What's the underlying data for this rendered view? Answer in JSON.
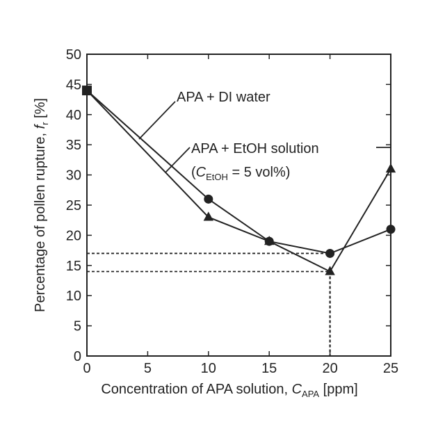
{
  "chart_data": {
    "type": "line",
    "title": "",
    "xlabel": {
      "main": "Concentration of APA solution, ",
      "symbol": "C",
      "subscript": "APA",
      "unit": " [ppm]"
    },
    "ylabel": {
      "main": "Percentage of pollen rupture, ",
      "symbol": "f",
      "subscript": "r",
      "unit": " [%]"
    },
    "xlim": [
      0,
      25
    ],
    "ylim": [
      0,
      50
    ],
    "xticks": [
      0,
      5,
      10,
      15,
      20,
      25
    ],
    "yticks": [
      0,
      5,
      10,
      15,
      20,
      25,
      30,
      35,
      40,
      45,
      50
    ],
    "grid": false,
    "x": [
      0,
      10,
      15,
      20,
      25
    ],
    "series": [
      {
        "name": "APA + DI water",
        "marker": "circle",
        "values": [
          44,
          26,
          19,
          17,
          21
        ]
      },
      {
        "name": "APA + EtOH solution",
        "marker": "triangle",
        "values": [
          44,
          23,
          19,
          14,
          31
        ]
      }
    ],
    "annotations": {
      "di_water_label": "APA + DI water",
      "etoh_label": "APA + EtOH solution",
      "etoh_condition": {
        "open": "(",
        "symbol": "C",
        "subscript": "EtOH",
        "rest": " = 5 vol%)"
      }
    },
    "reference_lines": {
      "horizontal": [
        17,
        14
      ],
      "vertical_x": 20
    },
    "colors": {
      "line": "#222222",
      "axis": "#222222",
      "background": "#ffffff"
    }
  }
}
